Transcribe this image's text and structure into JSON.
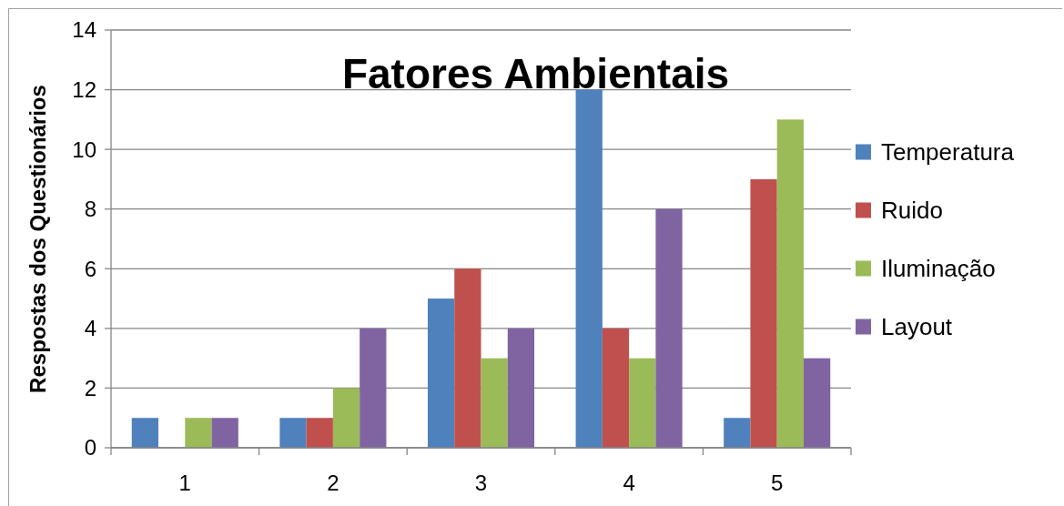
{
  "chart_data": {
    "type": "bar",
    "title": "Fatores Ambientais",
    "ylabel": "Respostas dos Questionários",
    "categories": [
      "1",
      "2",
      "3",
      "4",
      "5"
    ],
    "series": [
      {
        "name": "Temperatura",
        "color": "#4f81bd",
        "values": [
          1,
          1,
          5,
          12,
          1
        ]
      },
      {
        "name": "Ruido",
        "color": "#c0504d",
        "values": [
          0,
          1,
          6,
          4,
          9
        ]
      },
      {
        "name": "Iluminação",
        "color": "#9bbb59",
        "values": [
          1,
          2,
          3,
          3,
          11
        ]
      },
      {
        "name": "Layout",
        "color": "#8064a2",
        "values": [
          1,
          4,
          4,
          8,
          3
        ]
      }
    ],
    "ylim": [
      0,
      14
    ],
    "yticks": [
      0,
      2,
      4,
      6,
      8,
      10,
      12,
      14
    ],
    "grid": "y",
    "legend": "right"
  }
}
